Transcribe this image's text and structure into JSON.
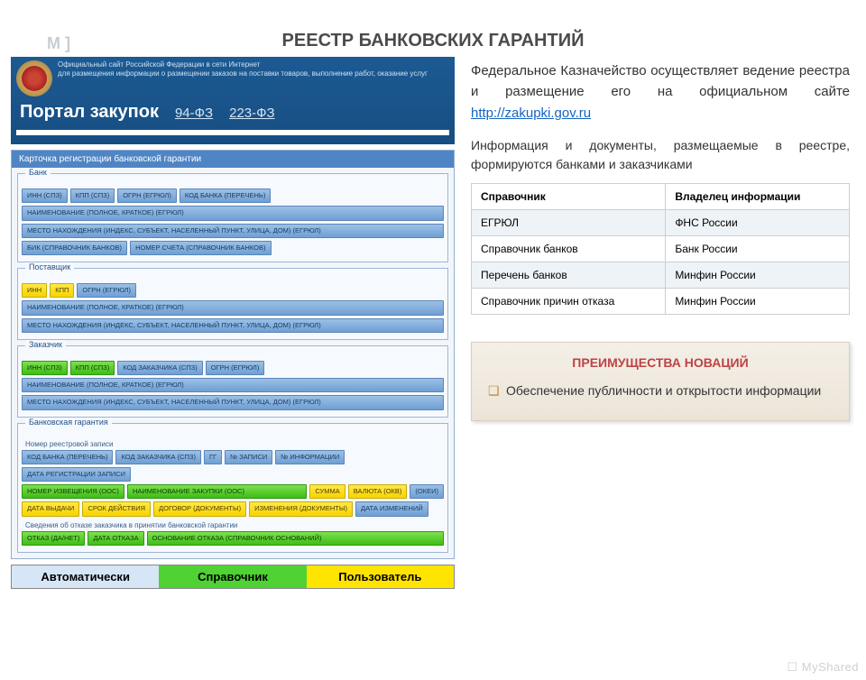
{
  "watermark_left": "M  ]",
  "watermark_right": "☐ MyShared",
  "title": "РЕЕСТР БАНКОВСКИХ ГАРАНТИЙ",
  "portal": {
    "desc1": "Официальный сайт Российской Федерации в сети Интернет",
    "desc2": "для размещения информации о размещении заказов на поставки товаров, выполнение работ, оказание услуг",
    "name": "Портал закупок",
    "law1": "94-ФЗ",
    "law2": "223-ФЗ"
  },
  "card_title": "Карточка регистрации банковской гарантии",
  "sections": {
    "bank": {
      "legend": "Банк",
      "row1": [
        "ИНН (СПЗ)",
        "КПП (СПЗ)",
        "ОГРН (ЕГРЮЛ)",
        "КОД БАНКА (ПЕРЕЧЕНЬ)"
      ],
      "row2": "НАИМЕНОВАНИЕ (ПОЛНОЕ, КРАТКОЕ) (ЕГРЮЛ)",
      "row3": "МЕСТО НАХОЖДЕНИЯ (ИНДЕКС, СУБЪЕКТ, НАСЕЛЕННЫЙ ПУНКТ, УЛИЦА, ДОМ) (ЕГРЮЛ)",
      "row4": [
        "БИК (СПРАВОЧНИК БАНКОВ)",
        "НОМЕР СЧЕТА (СПРАВОЧНИК БАНКОВ)"
      ]
    },
    "supplier": {
      "legend": "Поставщик",
      "row1": [
        "ИНН",
        "КПП",
        "ОГРН (ЕГРЮЛ)"
      ],
      "row2": "НАИМЕНОВАНИЕ (ПОЛНОЕ, КРАТКОЕ) (ЕГРЮЛ)",
      "row3": "МЕСТО НАХОЖДЕНИЯ (ИНДЕКС, СУБЪЕКТ, НАСЕЛЕННЫЙ ПУНКТ, УЛИЦА, ДОМ) (ЕГРЮЛ)"
    },
    "customer": {
      "legend": "Заказчик",
      "row1": [
        "ИНН (СПЗ)",
        "КПП (СПЗ)",
        "КОД ЗАКАЗЧИКА (СПЗ)",
        "ОГРН (ЕГРЮЛ)"
      ],
      "row2": "НАИМЕНОВАНИЕ (ПОЛНОЕ, КРАТКОЕ) (ЕГРЮЛ)",
      "row3": "МЕСТО НАХОЖДЕНИЯ (ИНДЕКС, СУБЪЕКТ, НАСЕЛЕННЫЙ ПУНКТ, УЛИЦА, ДОМ) (ЕГРЮЛ)"
    },
    "guarantee": {
      "legend": "Банковская гарантия",
      "sub1": "Номер реестровой записи",
      "row1": [
        "КОД БАНКА (ПЕРЕЧЕНЬ)",
        "КОД ЗАКАЗЧИКА (СПЗ)",
        "ГГ",
        "№ ЗАПИСИ",
        "№ ИНФОРМАЦИИ",
        "ДАТА РЕГИСТРАЦИИ ЗАПИСИ"
      ],
      "row2": [
        "НОМЕР ИЗВЕЩЕНИЯ (ООС)",
        "НАИМЕНОВАНИЕ ЗАКУПКИ (ООС)",
        "СУММА",
        "ВАЛЮТА (ОКВ)",
        "(ОКЕИ)"
      ],
      "row3": [
        "ДАТА ВЫДАЧИ",
        "СРОК ДЕЙСТВИЯ",
        "ДОГОВОР (ДОКУМЕНТЫ)",
        "ИЗМЕНЕНИЯ (ДОКУМЕНТЫ)",
        "ДАТА ИЗМЕНЕНИЙ"
      ],
      "sub2": "Сведения об отказе заказчика в принятии банковской гарантии",
      "row4": [
        "ОТКАЗ (ДА/НЕТ)",
        "ДАТА ОТКАЗА",
        "ОСНОВАНИЕ ОТКАЗА (СПРАВОЧНИК ОСНОВАНИЙ)"
      ]
    }
  },
  "legend": {
    "auto": "Автоматически",
    "ref": "Справочник",
    "user": "Пользователь"
  },
  "para1_text": "Федеральное Казначейство осуществляет ведение реестра и размещение его на официальном сайте ",
  "para1_link": "http://zakupki.gov.ru",
  "para2": "Информация и документы, размещаемые в реестре, формируются банками и заказчиками",
  "table": {
    "h1": "Справочник",
    "h2": "Владелец информации",
    "rows": [
      [
        "ЕГРЮЛ",
        "ФНС России"
      ],
      [
        "Справочник банков",
        "Банк России"
      ],
      [
        "Перечень банков",
        "Минфин России"
      ],
      [
        "Справочник причин отказа",
        "Минфин России"
      ]
    ]
  },
  "adv": {
    "title": "ПРЕИМУЩЕСТВА НОВАЦИЙ",
    "item": "Обеспечение публичности и открытости информации"
  },
  "colors": {
    "chip_blue": "#7aa8d8",
    "chip_green": "#4fd233",
    "chip_yellow": "#f8d300",
    "portal_bg": "#1a5489",
    "card_header": "#4f85c4"
  }
}
